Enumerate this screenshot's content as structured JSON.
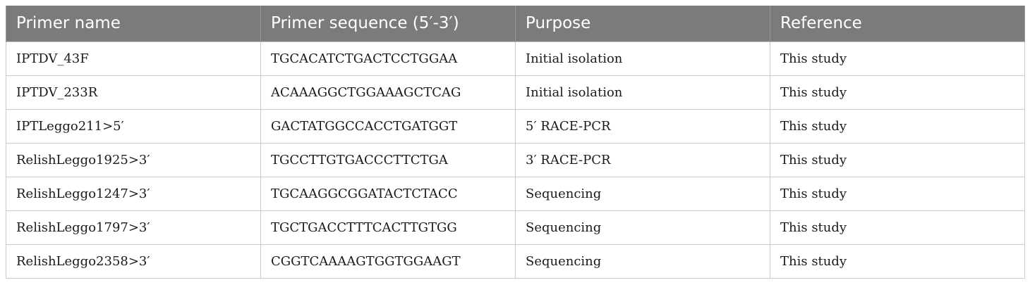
{
  "table": {
    "headers": [
      "Primer name",
      "Primer sequence (5′-3′)",
      "Purpose",
      "Reference"
    ],
    "rows": [
      [
        "IPTDV_43F",
        "TGCACATCTGACTCCTGGAA",
        "Initial isolation",
        "This study"
      ],
      [
        "IPTDV_233R",
        "ACAAAGGCTGGAAAGCTCAG",
        "Initial isolation",
        "This study"
      ],
      [
        "IPTLeggo211>5′",
        "GACTATGGCCACCTGATGGT",
        "5′ RACE-PCR",
        "This study"
      ],
      [
        "RelishLeggo1925>3′",
        "TGCCTTGTGACCCTTCTGA",
        "3′ RACE-PCR",
        "This study"
      ],
      [
        "RelishLeggo1247>3′",
        "TGCAAGGCGGATACTCTACC",
        "Sequencing",
        "This study"
      ],
      [
        "RelishLeggo1797>3′",
        "TGCTGACCTTTCACTTGTGG",
        "Sequencing",
        "This study"
      ],
      [
        "RelishLeggo2358>3′",
        "CGGTCAAAAGTGGTGGAAGT",
        "Sequencing",
        "This study"
      ]
    ]
  }
}
